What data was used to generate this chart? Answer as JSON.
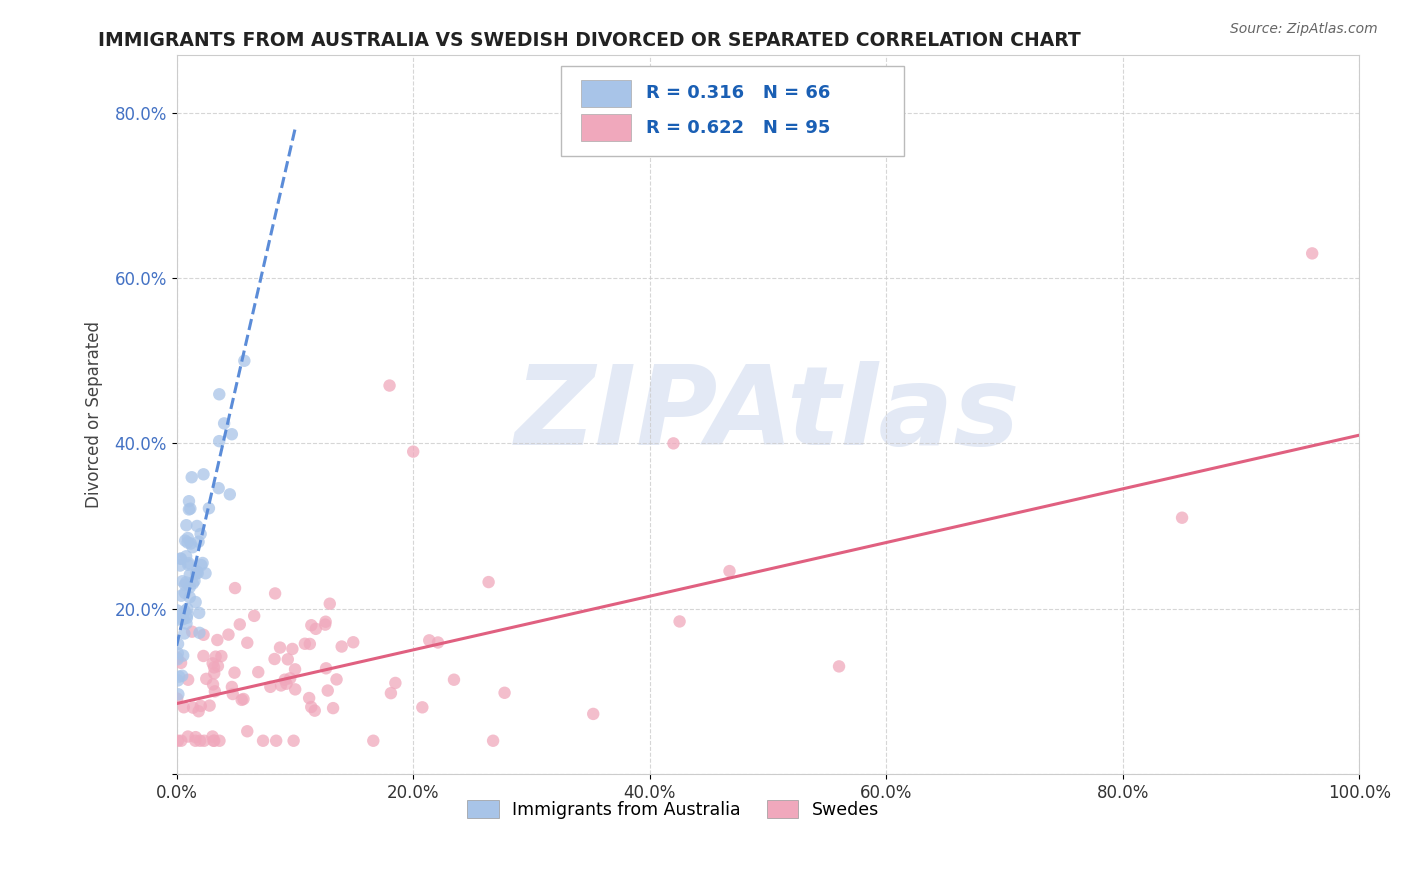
{
  "title": "IMMIGRANTS FROM AUSTRALIA VS SWEDISH DIVORCED OR SEPARATED CORRELATION CHART",
  "source_text": "Source: ZipAtlas.com",
  "ylabel": "Divorced or Separated",
  "xlim": [
    0.0,
    1.0
  ],
  "ylim": [
    0.0,
    0.87
  ],
  "xticks": [
    0.0,
    0.2,
    0.4,
    0.6,
    0.8,
    1.0
  ],
  "xticklabels": [
    "0.0%",
    "20.0%",
    "40.0%",
    "60.0%",
    "80.0%",
    "100.0%"
  ],
  "yticks": [
    0.0,
    0.2,
    0.4,
    0.6,
    0.8
  ],
  "yticklabels": [
    "",
    "20.0%",
    "40.0%",
    "60.0%",
    "80.0%"
  ],
  "legend_text1": "R = 0.316   N = 66",
  "legend_text2": "R = 0.622   N = 95",
  "blue_color": "#a8c4e8",
  "pink_color": "#f0a8bc",
  "blue_line_color": "#5b8cd8",
  "pink_line_color": "#e06080",
  "watermark": "ZIPAtlas",
  "blue_trend_x0": 0.0,
  "blue_trend_y0": 0.155,
  "blue_trend_x1": 0.1,
  "blue_trend_y1": 0.78,
  "pink_trend_x0": 0.0,
  "pink_trend_y0": 0.085,
  "pink_trend_x1": 1.0,
  "pink_trend_y1": 0.41,
  "background_color": "#ffffff",
  "grid_color": "#cccccc"
}
